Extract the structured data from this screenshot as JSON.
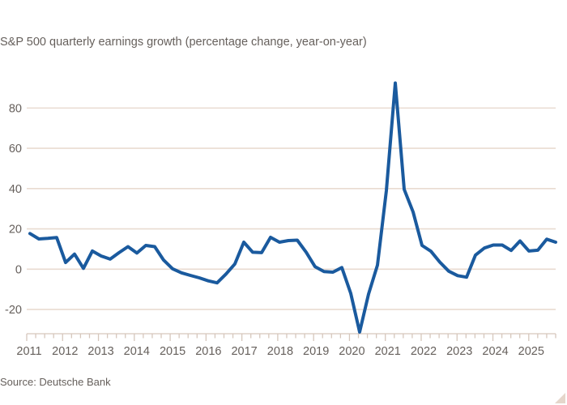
{
  "source_label": "Source: Deutsche Bank",
  "colors": {
    "line": "#1a5a9e",
    "grid": "#e9dbd1",
    "axis": "#d6c7bc",
    "text": "#66605c",
    "background": "#ffffff",
    "corner_triangle": "#e5d6cb"
  },
  "chart_data": {
    "type": "line",
    "title": "S&P 500 quarterly earnings growth (percentage change, year-on-year)",
    "xlabel": "",
    "ylabel": "",
    "ylim": [
      -32,
      97
    ],
    "grid": "horizontal",
    "legend": "none",
    "y_ticks": [
      80,
      60,
      40,
      20,
      0,
      -20
    ],
    "x_tick_years": [
      "2011",
      "2012",
      "2013",
      "2014",
      "2015",
      "2016",
      "2017",
      "2018",
      "2019",
      "2020",
      "2021",
      "2022",
      "2023",
      "2024",
      "2025"
    ],
    "x_minor_ticks_per_year": 4,
    "series": [
      {
        "name": "S&P 500 quarterly earnings growth (% change, year-on-year)",
        "quarters": [
          "2011 Q1",
          "2011 Q2",
          "2011 Q3",
          "2011 Q4",
          "2012 Q1",
          "2012 Q2",
          "2012 Q3",
          "2012 Q4",
          "2013 Q1",
          "2013 Q2",
          "2013 Q3",
          "2013 Q4",
          "2014 Q1",
          "2014 Q2",
          "2014 Q3",
          "2014 Q4",
          "2015 Q1",
          "2015 Q2",
          "2015 Q3",
          "2015 Q4",
          "2016 Q1",
          "2016 Q2",
          "2016 Q3",
          "2016 Q4",
          "2017 Q1",
          "2017 Q2",
          "2017 Q3",
          "2017 Q4",
          "2018 Q1",
          "2018 Q2",
          "2018 Q3",
          "2018 Q4",
          "2019 Q1",
          "2019 Q2",
          "2019 Q3",
          "2019 Q4",
          "2020 Q1",
          "2020 Q2",
          "2020 Q3",
          "2020 Q4",
          "2021 Q1",
          "2021 Q2",
          "2021 Q3",
          "2021 Q4",
          "2022 Q1",
          "2022 Q2",
          "2022 Q3",
          "2022 Q4",
          "2023 Q1",
          "2023 Q2",
          "2023 Q3",
          "2023 Q4",
          "2024 Q1",
          "2024 Q2",
          "2024 Q3",
          "2024 Q4",
          "2025 Q1",
          "2025 Q2",
          "2025 Q3",
          "2025 Q4"
        ],
        "values": [
          17.7,
          15.0,
          15.3,
          15.7,
          3.3,
          7.5,
          0.4,
          9.0,
          6.5,
          5.0,
          8.2,
          11.2,
          8.0,
          11.8,
          11.2,
          4.5,
          0.2,
          -1.8,
          -3.1,
          -4.3,
          -5.8,
          -6.8,
          -2.4,
          2.6,
          13.4,
          8.4,
          8.2,
          15.8,
          13.4,
          14.2,
          14.4,
          8.4,
          1.2,
          -1.2,
          -1.5,
          0.8,
          -12.0,
          -31.2,
          -12.4,
          2.0,
          39.0,
          92.4,
          39.6,
          28.4,
          11.8,
          8.9,
          3.5,
          -1.0,
          -3.2,
          -4.0,
          7.0,
          10.5,
          12.0,
          12.0,
          9.3,
          14.0,
          9.0,
          9.4,
          14.9,
          13.4
        ]
      }
    ]
  }
}
